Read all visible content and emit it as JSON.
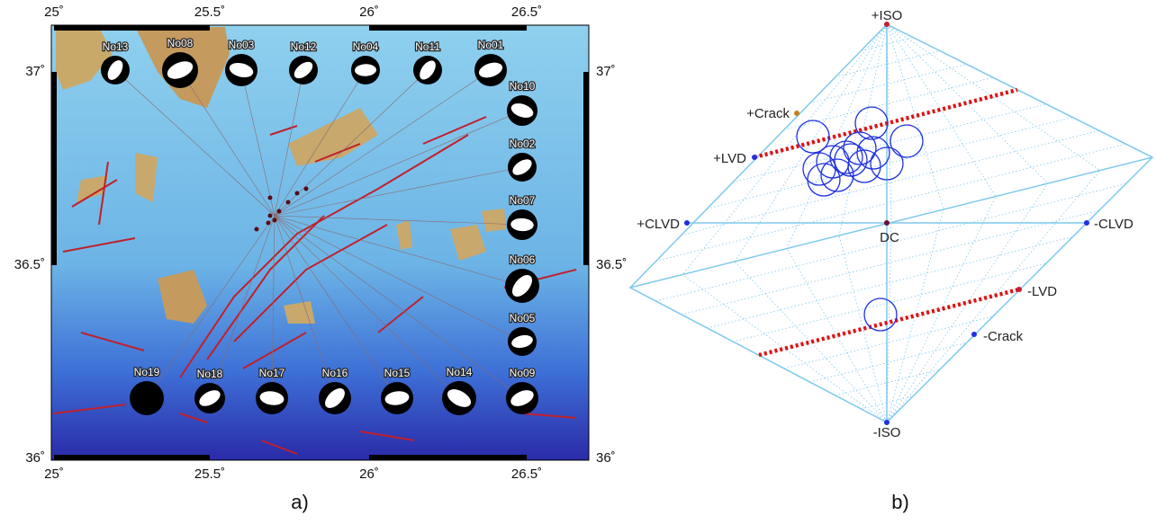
{
  "panel_a": {
    "lon_labels": [
      "25˚",
      "25.5˚",
      "26˚",
      "26.5˚"
    ],
    "lat_labels": [
      "37˚",
      "36.5˚",
      "36˚"
    ],
    "stations": [
      "No13",
      "No08",
      "No03",
      "No12",
      "No04",
      "No11",
      "No01",
      "No10",
      "No02",
      "No07",
      "No06",
      "No05",
      "No19",
      "No18",
      "No17",
      "No16",
      "No15",
      "No14",
      "No09"
    ],
    "caption": "a)"
  },
  "panel_b": {
    "iso_plus": "+ISO",
    "iso_minus": "-ISO",
    "crack_plus": "+Crack",
    "crack_minus": "-Crack",
    "lvd_plus": "+LVD",
    "lvd_minus": "-LVD",
    "clvd_plus": "+CLVD",
    "clvd_minus": "-CLVD",
    "dc": "DC",
    "caption": "b)"
  }
}
